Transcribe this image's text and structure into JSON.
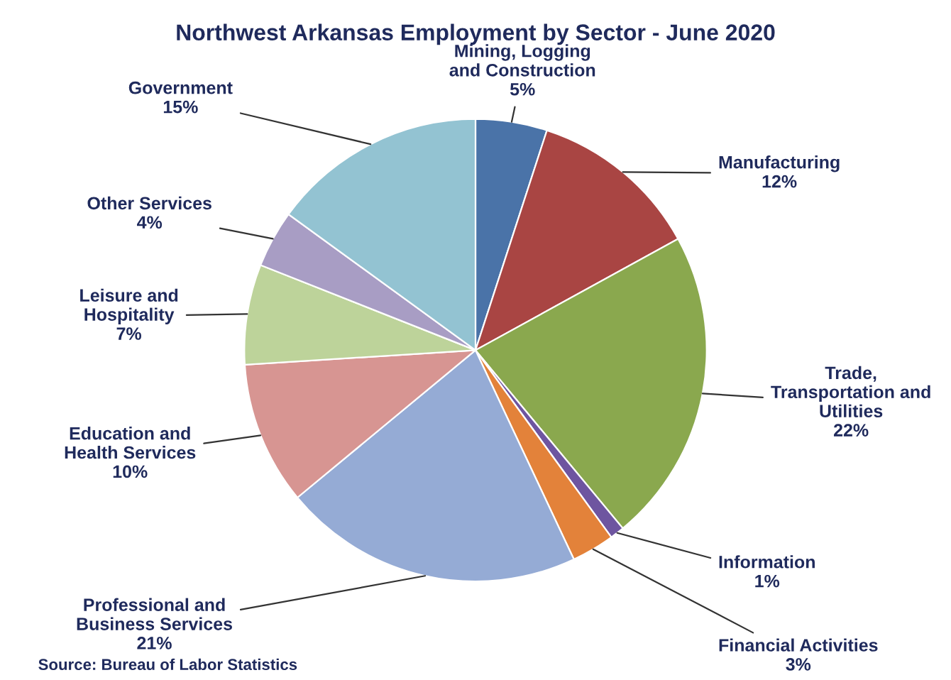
{
  "chart_data": {
    "type": "pie",
    "title": "Northwest Arkansas Employment by Sector - June 2020",
    "categories": [
      "Mining, Logging\nand Construction",
      "Manufacturing",
      "Trade,\nTransportation and\nUtilities",
      "Information",
      "Financial Activities",
      "Professional and\nBusiness Services",
      "Education and\nHealth Services",
      "Leisure and\nHospitality",
      "Other Services",
      "Government"
    ],
    "values": [
      5,
      12,
      22,
      1,
      3,
      21,
      10,
      7,
      4,
      15
    ],
    "value_labels": [
      "5%",
      "12%",
      "22%",
      "1%",
      "3%",
      "21%",
      "10%",
      "7%",
      "4%",
      "15%"
    ],
    "colors": [
      "#4a73a8",
      "#a94543",
      "#8aa84e",
      "#6e55a0",
      "#e3823a",
      "#95abd5",
      "#d79592",
      "#bdd39a",
      "#a89dc4",
      "#93c3d2"
    ],
    "legend": false,
    "annotations": [
      "Source: Bureau of Labor Statistics"
    ]
  }
}
